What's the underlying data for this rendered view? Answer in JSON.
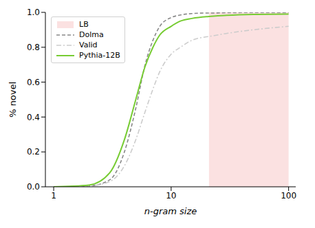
{
  "chart_data": {
    "type": "line",
    "x_label": "n-gram size",
    "y_label": "% novel",
    "log": "x",
    "xlim": [
      0.85,
      115
    ],
    "xticks": [
      1,
      10,
      100
    ],
    "ylim": [
      0,
      1
    ],
    "yticks": [
      {
        "value": 0,
        "label": "0.0"
      },
      {
        "value": 0.2,
        "label": "0.2"
      },
      {
        "value": 0.4,
        "label": "0.4"
      },
      {
        "value": 0.6,
        "label": "0.6"
      },
      {
        "value": 0.8,
        "label": "0.8"
      },
      {
        "value": 1,
        "label": "1.0"
      }
    ],
    "grid": false,
    "legend": "upper left",
    "x": [
      1,
      2,
      3,
      4,
      5,
      6,
      7,
      8,
      10,
      12,
      15,
      20,
      21,
      30,
      50,
      100
    ],
    "series": [
      {
        "name": "LB",
        "type": "area",
        "color": "#fbe1e1",
        "values": [
          null,
          null,
          null,
          null,
          null,
          null,
          null,
          null,
          null,
          null,
          null,
          null,
          1,
          1,
          1,
          1
        ]
      },
      {
        "name": "Dolma",
        "type": "line",
        "color": "#888888",
        "line_style": "dashed",
        "values": [
          0,
          0.005,
          0.04,
          0.2,
          0.45,
          0.7,
          0.84,
          0.92,
          0.97,
          0.985,
          0.993,
          0.996,
          0.996,
          0.998,
          0.999,
          0.999
        ]
      },
      {
        "name": "Valid",
        "type": "line",
        "color": "#cccccc",
        "line_style": "dashdot",
        "values": [
          0,
          0.005,
          0.03,
          0.12,
          0.27,
          0.43,
          0.56,
          0.66,
          0.76,
          0.8,
          0.84,
          0.86,
          0.862,
          0.88,
          0.9,
          0.92
        ]
      },
      {
        "name": "Pythia-12B",
        "type": "line",
        "color": "#77cc33",
        "line_style": "solid",
        "values": [
          0,
          0.01,
          0.08,
          0.27,
          0.5,
          0.69,
          0.8,
          0.87,
          0.92,
          0.95,
          0.965,
          0.975,
          0.976,
          0.983,
          0.988,
          0.99
        ]
      }
    ]
  }
}
